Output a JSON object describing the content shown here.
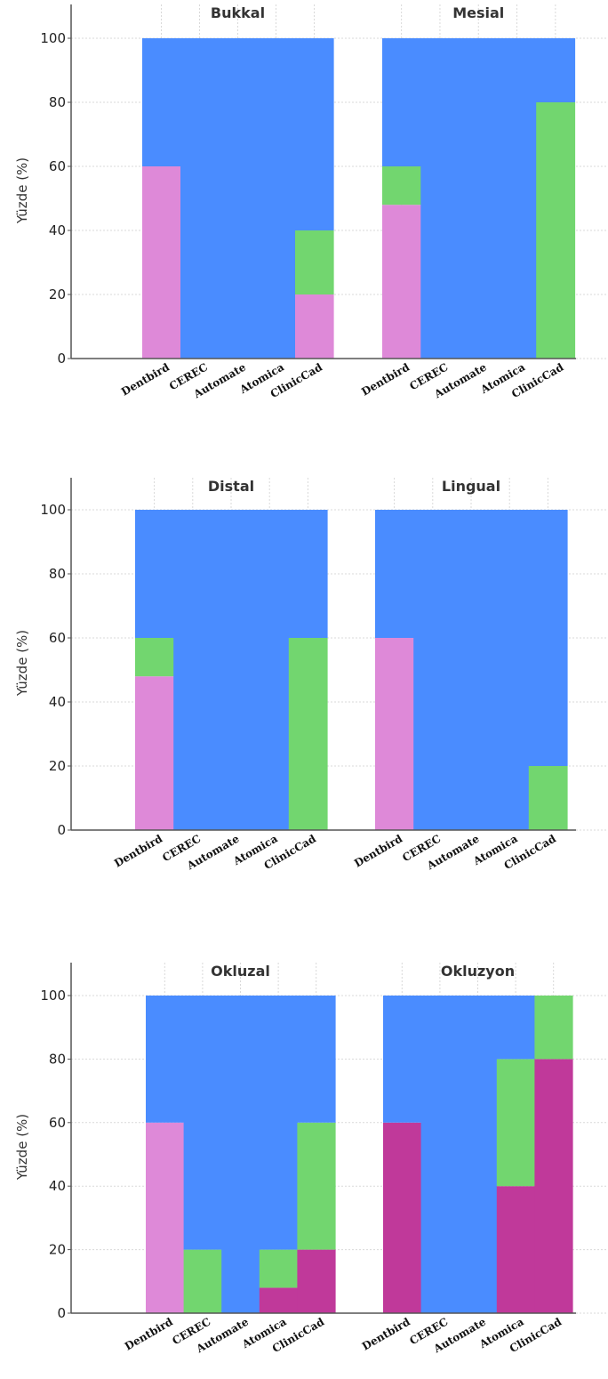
{
  "colors": {
    "background_fill": "#4a8cff",
    "pink": "#de89d8",
    "green": "#72d66f",
    "magenta": "#c0399a"
  },
  "chart_data": [
    {
      "type": "bar",
      "layout": "stacked",
      "ylabel": "Yüzde (%)",
      "yticks": [
        0,
        20,
        40,
        60,
        80,
        100
      ],
      "ylim": [
        0,
        110
      ],
      "grid": true,
      "categories": [
        "Dentbird",
        "CEREC",
        "Automate",
        "Atomica",
        "ClinicCad"
      ],
      "panels": [
        {
          "title": "Bukkal",
          "bars": [
            {
              "category": "Dentbird",
              "segments": [
                {
                  "value": 60,
                  "color": "pink"
                },
                {
                  "value": 40,
                  "color": "background_fill"
                }
              ]
            },
            {
              "category": "CEREC",
              "segments": [
                {
                  "value": 100,
                  "color": "background_fill"
                }
              ]
            },
            {
              "category": "Automate",
              "segments": [
                {
                  "value": 100,
                  "color": "background_fill"
                }
              ]
            },
            {
              "category": "Atomica",
              "segments": [
                {
                  "value": 100,
                  "color": "background_fill"
                }
              ]
            },
            {
              "category": "ClinicCad",
              "segments": [
                {
                  "value": 20,
                  "color": "pink"
                },
                {
                  "value": 20,
                  "color": "green"
                },
                {
                  "value": 60,
                  "color": "background_fill"
                }
              ]
            }
          ]
        },
        {
          "title": "Mesial",
          "bars": [
            {
              "category": "Dentbird",
              "segments": [
                {
                  "value": 48,
                  "color": "pink"
                },
                {
                  "value": 12,
                  "color": "green"
                },
                {
                  "value": 40,
                  "color": "background_fill"
                }
              ]
            },
            {
              "category": "CEREC",
              "segments": [
                {
                  "value": 100,
                  "color": "background_fill"
                }
              ]
            },
            {
              "category": "Automate",
              "segments": [
                {
                  "value": 100,
                  "color": "background_fill"
                }
              ]
            },
            {
              "category": "Atomica",
              "segments": [
                {
                  "value": 100,
                  "color": "background_fill"
                }
              ]
            },
            {
              "category": "ClinicCad",
              "segments": [
                {
                  "value": 80,
                  "color": "green"
                },
                {
                  "value": 20,
                  "color": "background_fill"
                }
              ]
            }
          ]
        }
      ]
    },
    {
      "type": "bar",
      "layout": "stacked",
      "ylabel": "Yüzde (%)",
      "yticks": [
        0,
        20,
        40,
        60,
        80,
        100
      ],
      "ylim": [
        0,
        110
      ],
      "grid": true,
      "categories": [
        "Dentbird",
        "CEREC",
        "Automate",
        "Atomica",
        "ClinicCad"
      ],
      "panels": [
        {
          "title": "Distal",
          "bars": [
            {
              "category": "Dentbird",
              "segments": [
                {
                  "value": 48,
                  "color": "pink"
                },
                {
                  "value": 12,
                  "color": "green"
                },
                {
                  "value": 40,
                  "color": "background_fill"
                }
              ]
            },
            {
              "category": "CEREC",
              "segments": [
                {
                  "value": 100,
                  "color": "background_fill"
                }
              ]
            },
            {
              "category": "Automate",
              "segments": [
                {
                  "value": 100,
                  "color": "background_fill"
                }
              ]
            },
            {
              "category": "Atomica",
              "segments": [
                {
                  "value": 100,
                  "color": "background_fill"
                }
              ]
            },
            {
              "category": "ClinicCad",
              "segments": [
                {
                  "value": 60,
                  "color": "green"
                },
                {
                  "value": 40,
                  "color": "background_fill"
                }
              ]
            }
          ]
        },
        {
          "title": "Lingual",
          "bars": [
            {
              "category": "Dentbird",
              "segments": [
                {
                  "value": 60,
                  "color": "pink"
                },
                {
                  "value": 40,
                  "color": "background_fill"
                }
              ]
            },
            {
              "category": "CEREC",
              "segments": [
                {
                  "value": 100,
                  "color": "background_fill"
                }
              ]
            },
            {
              "category": "Automate",
              "segments": [
                {
                  "value": 100,
                  "color": "background_fill"
                }
              ]
            },
            {
              "category": "Atomica",
              "segments": [
                {
                  "value": 100,
                  "color": "background_fill"
                }
              ]
            },
            {
              "category": "ClinicCad",
              "segments": [
                {
                  "value": 20,
                  "color": "green"
                },
                {
                  "value": 80,
                  "color": "background_fill"
                }
              ]
            }
          ]
        }
      ]
    },
    {
      "type": "bar",
      "layout": "stacked",
      "ylabel": "Yüzde (%)",
      "yticks": [
        0,
        20,
        40,
        60,
        80,
        100
      ],
      "ylim": [
        0,
        110
      ],
      "grid": true,
      "categories": [
        "Dentbird",
        "CEREC",
        "Automate",
        "Atomica",
        "ClinicCad"
      ],
      "panels": [
        {
          "title": "Okluzal",
          "bars": [
            {
              "category": "Dentbird",
              "segments": [
                {
                  "value": 60,
                  "color": "pink"
                },
                {
                  "value": 40,
                  "color": "background_fill"
                }
              ]
            },
            {
              "category": "CEREC",
              "segments": [
                {
                  "value": 20,
                  "color": "green"
                },
                {
                  "value": 80,
                  "color": "background_fill"
                }
              ]
            },
            {
              "category": "Automate",
              "segments": [
                {
                  "value": 100,
                  "color": "background_fill"
                }
              ]
            },
            {
              "category": "Atomica",
              "segments": [
                {
                  "value": 8,
                  "color": "magenta"
                },
                {
                  "value": 12,
                  "color": "green"
                },
                {
                  "value": 80,
                  "color": "background_fill"
                }
              ]
            },
            {
              "category": "ClinicCad",
              "segments": [
                {
                  "value": 20,
                  "color": "magenta"
                },
                {
                  "value": 40,
                  "color": "green"
                },
                {
                  "value": 40,
                  "color": "background_fill"
                }
              ]
            }
          ]
        },
        {
          "title": "Okluzyon",
          "bars": [
            {
              "category": "Dentbird",
              "segments": [
                {
                  "value": 60,
                  "color": "magenta"
                },
                {
                  "value": 40,
                  "color": "background_fill"
                }
              ]
            },
            {
              "category": "CEREC",
              "segments": [
                {
                  "value": 100,
                  "color": "background_fill"
                }
              ]
            },
            {
              "category": "Automate",
              "segments": [
                {
                  "value": 100,
                  "color": "background_fill"
                }
              ]
            },
            {
              "category": "Atomica",
              "segments": [
                {
                  "value": 40,
                  "color": "magenta"
                },
                {
                  "value": 40,
                  "color": "green"
                },
                {
                  "value": 20,
                  "color": "background_fill"
                }
              ]
            },
            {
              "category": "ClinicCad",
              "segments": [
                {
                  "value": 80,
                  "color": "magenta"
                },
                {
                  "value": 20,
                  "color": "green"
                }
              ]
            }
          ]
        }
      ]
    }
  ]
}
